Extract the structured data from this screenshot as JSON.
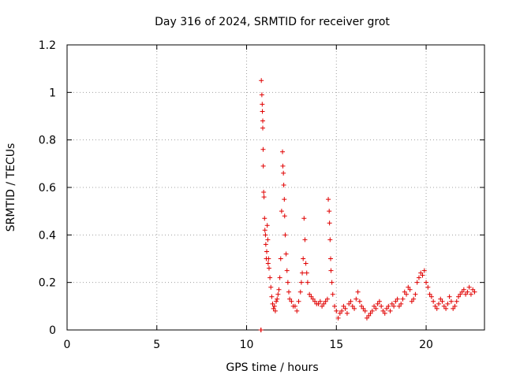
{
  "chart_data": {
    "type": "scatter",
    "title": "Day 316 of 2024, SRMTID for receiver grot",
    "xlabel": "GPS time / hours",
    "ylabel": "SRMTID / TECUs",
    "xlim": [
      0,
      23.25
    ],
    "ylim": [
      0,
      1.2
    ],
    "xticks": [
      0,
      5,
      10,
      15,
      20
    ],
    "yticks": [
      0,
      0.2,
      0.4,
      0.6,
      0.8,
      1,
      1.2
    ],
    "ytick_labels": [
      "0",
      "0.2",
      "0.4",
      "0.6",
      "0.8",
      "1",
      "1.2"
    ],
    "grid": true,
    "marker": "+",
    "color": "#e00000",
    "series": [
      {
        "name": "SRMTID",
        "x": [
          10.8,
          10.8,
          10.82,
          10.85,
          10.87,
          10.88,
          10.9,
          10.9,
          10.92,
          10.93,
          10.95,
          10.97,
          11.0,
          11.02,
          11.05,
          11.07,
          11.1,
          11.12,
          11.15,
          11.18,
          11.2,
          11.22,
          11.25,
          11.3,
          11.35,
          11.4,
          11.45,
          11.5,
          11.55,
          11.6,
          11.65,
          11.7,
          11.75,
          11.8,
          11.85,
          11.9,
          11.95,
          12.0,
          12.02,
          12.05,
          12.07,
          12.1,
          12.12,
          12.15,
          12.2,
          12.25,
          12.3,
          12.35,
          12.4,
          12.5,
          12.6,
          12.7,
          12.8,
          12.9,
          13.0,
          13.05,
          13.1,
          13.15,
          13.2,
          13.25,
          13.3,
          13.35,
          13.4,
          13.5,
          13.6,
          13.7,
          13.8,
          13.9,
          14.0,
          14.1,
          14.2,
          14.3,
          14.4,
          14.5,
          14.55,
          14.6,
          14.62,
          14.65,
          14.68,
          14.7,
          14.75,
          14.8,
          14.9,
          15.0,
          15.1,
          15.2,
          15.3,
          15.4,
          15.5,
          15.6,
          15.7,
          15.8,
          15.9,
          16.0,
          16.1,
          16.2,
          16.3,
          16.4,
          16.5,
          16.6,
          16.7,
          16.8,
          16.9,
          17.0,
          17.1,
          17.2,
          17.3,
          17.4,
          17.5,
          17.6,
          17.7,
          17.8,
          17.9,
          18.0,
          18.1,
          18.2,
          18.3,
          18.4,
          18.5,
          18.6,
          18.7,
          18.8,
          18.9,
          19.0,
          19.1,
          19.2,
          19.3,
          19.4,
          19.5,
          19.6,
          19.7,
          19.8,
          19.9,
          20.0,
          20.1,
          20.2,
          20.3,
          20.4,
          20.5,
          20.6,
          20.7,
          20.8,
          20.9,
          21.0,
          21.1,
          21.2,
          21.3,
          21.4,
          21.5,
          21.6,
          21.7,
          21.8,
          21.9,
          22.0,
          22.1,
          22.2,
          22.3,
          22.4,
          22.5,
          22.6,
          22.7
        ],
        "y": [
          0.0,
          0.0,
          1.05,
          0.99,
          0.95,
          0.92,
          0.88,
          0.85,
          0.76,
          0.69,
          0.58,
          0.56,
          0.47,
          0.42,
          0.4,
          0.36,
          0.3,
          0.33,
          0.44,
          0.38,
          0.28,
          0.3,
          0.26,
          0.22,
          0.18,
          0.14,
          0.11,
          0.09,
          0.1,
          0.08,
          0.12,
          0.13,
          0.15,
          0.17,
          0.22,
          0.3,
          0.5,
          0.75,
          0.69,
          0.66,
          0.61,
          0.55,
          0.48,
          0.4,
          0.32,
          0.25,
          0.2,
          0.16,
          0.13,
          0.12,
          0.1,
          0.1,
          0.08,
          0.12,
          0.16,
          0.2,
          0.24,
          0.3,
          0.47,
          0.38,
          0.28,
          0.24,
          0.2,
          0.15,
          0.14,
          0.13,
          0.12,
          0.11,
          0.11,
          0.12,
          0.1,
          0.11,
          0.12,
          0.13,
          0.55,
          0.5,
          0.45,
          0.38,
          0.3,
          0.25,
          0.2,
          0.15,
          0.1,
          0.08,
          0.05,
          0.07,
          0.08,
          0.1,
          0.09,
          0.07,
          0.11,
          0.12,
          0.1,
          0.09,
          0.13,
          0.16,
          0.12,
          0.1,
          0.09,
          0.08,
          0.05,
          0.06,
          0.07,
          0.08,
          0.1,
          0.09,
          0.11,
          0.12,
          0.1,
          0.08,
          0.07,
          0.09,
          0.1,
          0.08,
          0.11,
          0.1,
          0.12,
          0.13,
          0.1,
          0.11,
          0.13,
          0.16,
          0.15,
          0.18,
          0.17,
          0.12,
          0.13,
          0.15,
          0.2,
          0.22,
          0.24,
          0.23,
          0.25,
          0.2,
          0.18,
          0.15,
          0.14,
          0.12,
          0.1,
          0.09,
          0.11,
          0.13,
          0.12,
          0.1,
          0.09,
          0.11,
          0.14,
          0.12,
          0.09,
          0.1,
          0.12,
          0.14,
          0.15,
          0.16,
          0.17,
          0.15,
          0.16,
          0.18,
          0.15,
          0.17,
          0.16
        ]
      }
    ]
  }
}
